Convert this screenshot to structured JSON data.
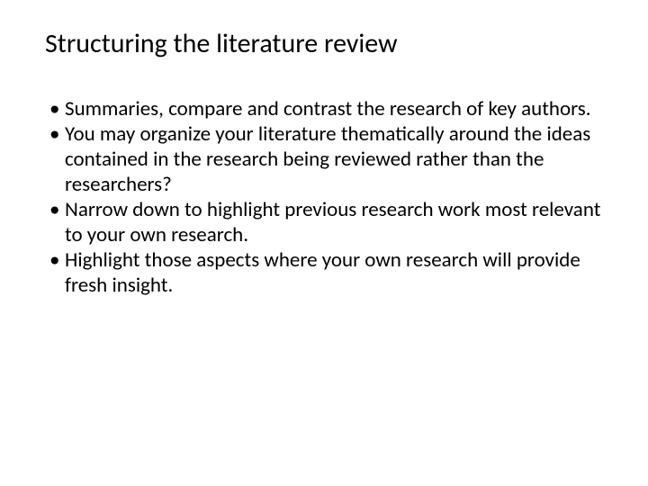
{
  "slide": {
    "title": "Structuring the literature review",
    "bullets": [
      "Summaries, compare and contrast the research of key authors.",
      "You may organize your literature thematically around the ideas contained in the research being reviewed rather than the researchers?",
      "Narrow down to highlight previous research work most relevant to your own research.",
      "Highlight those aspects where your own research will provide fresh insight."
    ]
  },
  "styling": {
    "background_color": "#ffffff",
    "text_color": "#000000",
    "title_fontsize": 30,
    "body_fontsize": 23,
    "font_family": "Calibri"
  }
}
